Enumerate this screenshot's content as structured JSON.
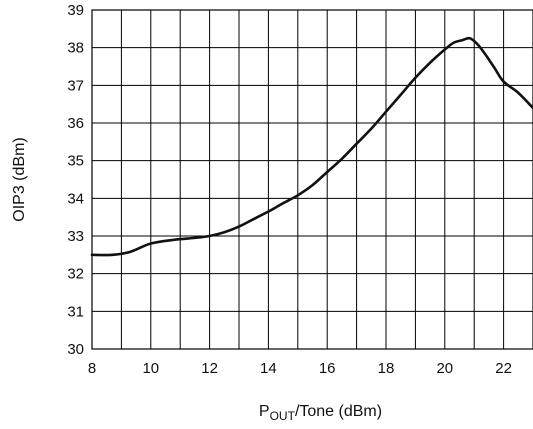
{
  "chart_data": {
    "type": "line",
    "xlabel": {
      "main": "P",
      "sub": "OUT",
      "rest": "/Tone (dBm)"
    },
    "ylabel": "OIP3 (dBm)",
    "xlim": [
      8,
      23
    ],
    "ylim": [
      30,
      39
    ],
    "x_ticks": [
      8,
      10,
      12,
      14,
      16,
      18,
      20,
      22
    ],
    "y_ticks": [
      30,
      31,
      32,
      33,
      34,
      35,
      36,
      37,
      38,
      39
    ],
    "grid": true,
    "series": [
      {
        "x": [
          8.0,
          8.7,
          9.3,
          10.0,
          10.8,
          11.5,
          12.0,
          12.5,
          13.0,
          13.5,
          14.0,
          14.5,
          15.0,
          15.5,
          16.0,
          16.5,
          17.0,
          17.5,
          18.0,
          18.5,
          19.0,
          19.5,
          20.0,
          20.3,
          20.6,
          20.85,
          21.1,
          21.4,
          21.7,
          22.0,
          22.5,
          23.0
        ],
        "y": [
          32.5,
          32.5,
          32.58,
          32.8,
          32.9,
          32.95,
          33.0,
          33.1,
          33.25,
          33.45,
          33.65,
          33.87,
          34.08,
          34.35,
          34.7,
          35.05,
          35.45,
          35.85,
          36.3,
          36.75,
          37.2,
          37.6,
          37.95,
          38.13,
          38.2,
          38.25,
          38.1,
          37.8,
          37.45,
          37.1,
          36.8,
          36.4
        ]
      }
    ]
  }
}
